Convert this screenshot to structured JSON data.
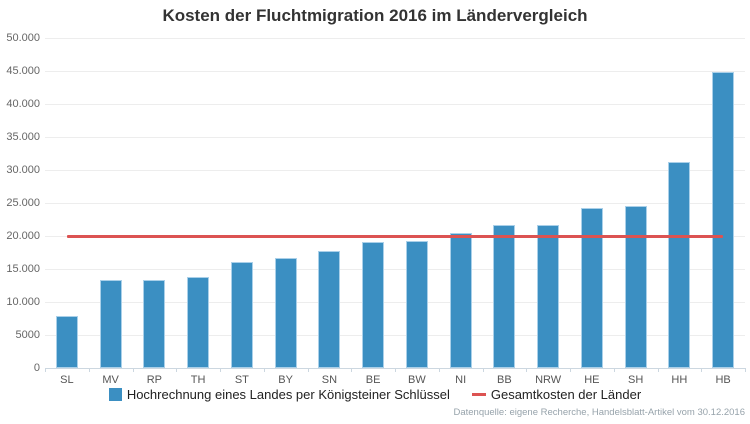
{
  "header": {
    "title": "Kosten der Fluchtmigration 2016 im Ländervergleich"
  },
  "legend": {
    "bar_label": "Hochrechnung eines Landes per Königsteiner Schlüssel",
    "line_label": "Gesamtkosten der Länder"
  },
  "footer": {
    "source": "Datenquelle: eigene Recherche, Handelsblatt-Artikel vom 30.12.2016"
  },
  "colors": {
    "bar": "#3b8fc2",
    "bar_edge": "#a9cde4",
    "reference_line": "#dc5352",
    "grid": "#ededed",
    "baseline": "#ccd7e0",
    "axis_text": "#666666",
    "title_text": "#333333",
    "footer_text": "#97a3ab"
  },
  "chart_data": {
    "type": "bar",
    "title": "Kosten der Fluchtmigration 2016 im Ländervergleich",
    "xlabel": "",
    "ylabel": "",
    "ylim": [
      0,
      50000
    ],
    "grid": true,
    "legend_position": "bottom",
    "categories": [
      "SL",
      "MV",
      "RP",
      "TH",
      "ST",
      "BY",
      "SN",
      "BE",
      "BW",
      "NI",
      "BB",
      "NRW",
      "HE",
      "SH",
      "HH",
      "HB"
    ],
    "series": [
      {
        "name": "Hochrechnung eines Landes per Königsteiner Schlüssel",
        "type": "bar",
        "values": [
          7900,
          13300,
          13400,
          13800,
          16100,
          16600,
          17800,
          19100,
          19200,
          20400,
          21600,
          21700,
          24300,
          24600,
          31200,
          44800
        ]
      },
      {
        "name": "Gesamtkosten der Länder",
        "type": "line",
        "constant_value": 19900
      }
    ],
    "y_ticks": [
      {
        "value": 0,
        "label": "0"
      },
      {
        "value": 5000,
        "label": "5000"
      },
      {
        "value": 10000,
        "label": "10.000"
      },
      {
        "value": 15000,
        "label": "15.000"
      },
      {
        "value": 20000,
        "label": "20.000"
      },
      {
        "value": 25000,
        "label": "25.000"
      },
      {
        "value": 30000,
        "label": "30.000"
      },
      {
        "value": 35000,
        "label": "35.000"
      },
      {
        "value": 40000,
        "label": "40.000"
      },
      {
        "value": 45000,
        "label": "45.000"
      },
      {
        "value": 50000,
        "label": "50.000"
      }
    ],
    "source_note": "Datenquelle: eigene Recherche, Handelsblatt-Artikel vom 30.12.2016"
  }
}
